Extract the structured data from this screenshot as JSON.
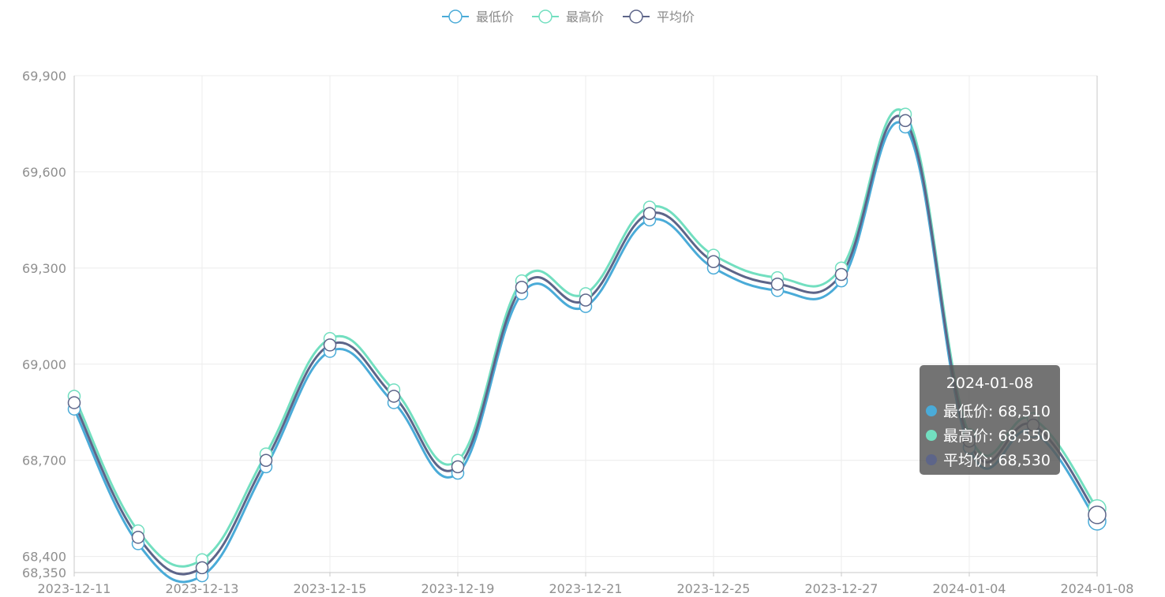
{
  "chart_data": {
    "type": "line",
    "smooth": true,
    "legend_position": "top-center",
    "grid": true,
    "x": [
      "2023-12-11",
      "2023-12-12",
      "2023-12-13",
      "2023-12-14",
      "2023-12-15",
      "2023-12-18",
      "2023-12-19",
      "2023-12-20",
      "2023-12-21",
      "2023-12-22",
      "2023-12-25",
      "2023-12-26",
      "2023-12-27",
      "2023-12-28",
      "2024-01-04",
      "2024-01-05",
      "2024-01-08"
    ],
    "x_tick_labels": [
      "2023-12-11",
      "2023-12-13",
      "2023-12-15",
      "2023-12-19",
      "2023-12-21",
      "2023-12-25",
      "2023-12-27",
      "2024-01-04",
      "2024-01-08"
    ],
    "ylim": [
      68350,
      69900
    ],
    "y_ticks": [
      68350,
      68400,
      68700,
      69000,
      69300,
      69600,
      69900
    ],
    "y_tick_labels": [
      "68,350",
      "68,400",
      "68,700",
      "69,000",
      "69,300",
      "69,600",
      "69,900"
    ],
    "series": [
      {
        "name": "最低价",
        "color": "#4aabd8",
        "values": [
          68860,
          68440,
          68340,
          68680,
          69040,
          68880,
          68660,
          69220,
          69180,
          69450,
          69300,
          69230,
          69260,
          69740,
          68740,
          68790,
          68510
        ]
      },
      {
        "name": "最高价",
        "color": "#72dfc0",
        "values": [
          68900,
          68480,
          68390,
          68720,
          69080,
          68920,
          68700,
          69260,
          69220,
          69490,
          69340,
          69270,
          69300,
          69780,
          68780,
          68830,
          68550
        ]
      },
      {
        "name": "平均价",
        "color": "#5d6589",
        "values": [
          68880,
          68460,
          68365,
          68700,
          69060,
          68900,
          68680,
          69240,
          69200,
          69470,
          69320,
          69250,
          69280,
          69760,
          68760,
          68810,
          68530
        ]
      }
    ],
    "tooltip": {
      "date": "2024-01-08",
      "rows": [
        {
          "label": "最低价: 68,510",
          "color": "#4aabd8"
        },
        {
          "label": "最高价: 68,550",
          "color": "#72dfc0"
        },
        {
          "label": "平均价: 68,530",
          "color": "#5d6589"
        }
      ]
    }
  }
}
